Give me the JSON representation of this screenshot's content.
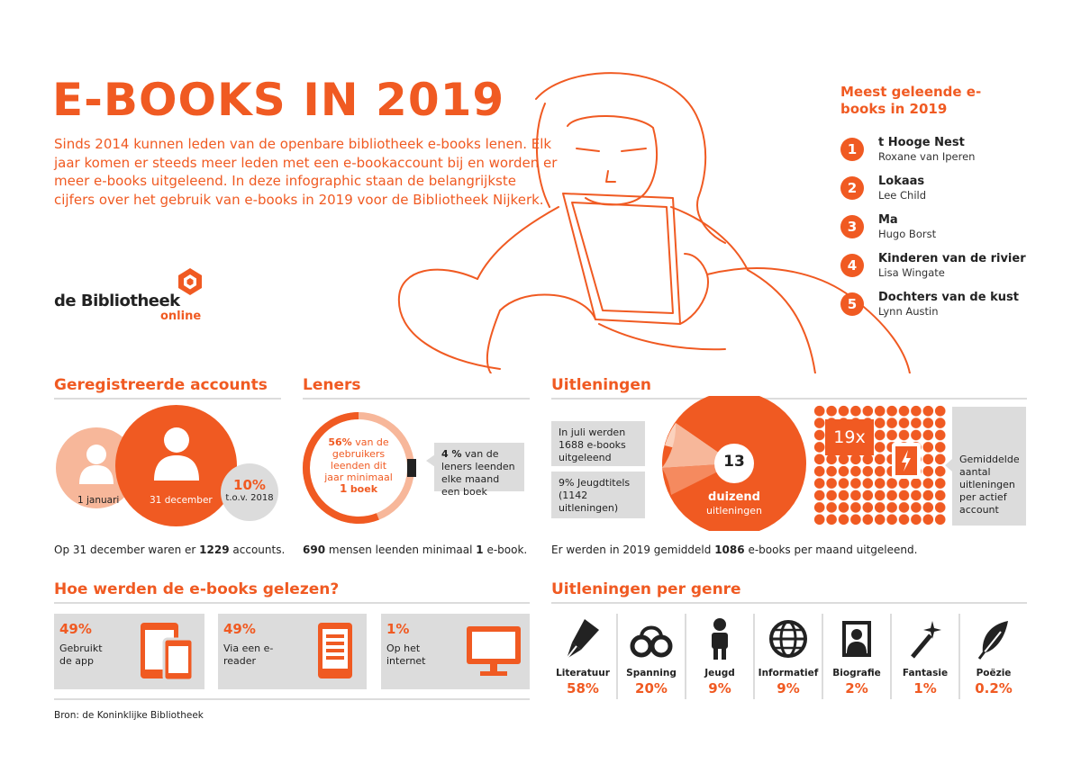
{
  "title": "E-BOOKS IN 2019",
  "intro": "Sinds 2014 kunnen leden van de openbare bibliotheek e-books lenen. Elk jaar komen er steeds meer leden met een e-bookaccount bij en worden er meer e-books uitgeleend. In deze infographic staan de belangrijkste cijfers over het gebruik van e-books in 2019 voor de Bibliotheek Nijkerk.",
  "logo": {
    "name": "de Bibliotheek",
    "sub": "online"
  },
  "top5": {
    "title": "Meest geleende e-books in 2019",
    "items": [
      {
        "num": "1",
        "title": "t Hooge Nest",
        "author": "Roxane van Iperen"
      },
      {
        "num": "2",
        "title": "Lokaas",
        "author": "Lee Child"
      },
      {
        "num": "3",
        "title": "Ma",
        "author": "Hugo Borst"
      },
      {
        "num": "4",
        "title": "Kinderen van de rivier",
        "author": "Lisa Wingate"
      },
      {
        "num": "5",
        "title": "Dochters van de kust",
        "author": "Lynn Austin"
      }
    ]
  },
  "accounts": {
    "title": "Geregistreerde accounts",
    "jan_label": "1 januari",
    "dec_label": "31 december",
    "pct": "10%",
    "pct_sub": "t.o.v. 2018",
    "caption_pre": "Op 31 december waren er",
    "caption_num": "1229",
    "caption_post": "accounts."
  },
  "leners": {
    "title": "Leners",
    "ring_pct": "56%",
    "ring_text": "van de gebruikers leenden dit jaar minimaal",
    "ring_num": "1",
    "ring_unit": "boek",
    "box_pct": "4 %",
    "box_text": "van de leners leenden elke maand een boek",
    "ring_value": 0.56,
    "caption_num": "690",
    "caption_mid": "mensen leenden minimaal",
    "caption_num2": "1",
    "caption_post": "e-book."
  },
  "uitleningen": {
    "title": "Uitleningen",
    "box1": "In juli werden 1688 e-books uitgeleend",
    "box2": "9% Jeugdtitels (1142 uitleningen)",
    "center_num": "13",
    "center_big": "duizend",
    "center_sub": "uitleningen",
    "times": "19x",
    "avg_box": "Gemiddelde aantal uitleningen per actief account",
    "caption_pre": "Er werden in 2019 gemiddeld",
    "caption_num": "1086",
    "caption_post": "e-books per maand uitgeleend."
  },
  "reading": {
    "title": "Hoe werden de e-books gelezen?",
    "cards": [
      {
        "pct": "49%",
        "label": "Gebruikt de app",
        "icon": "tablet-phone-icon",
        "value": 49
      },
      {
        "pct": "49%",
        "label": "Via een e-reader",
        "icon": "ereader-icon",
        "value": 49
      },
      {
        "pct": "1%",
        "label": "Op het internet",
        "icon": "monitor-icon",
        "value": 1
      }
    ]
  },
  "genres": {
    "title": "Uitleningen per genre",
    "items": [
      {
        "label": "Literatuur",
        "pct": "58%",
        "icon": "fountain-pen-icon"
      },
      {
        "label": "Spanning",
        "pct": "20%",
        "icon": "handcuffs-icon"
      },
      {
        "label": "Jeugd",
        "pct": "9%",
        "icon": "child-icon"
      },
      {
        "label": "Informatief",
        "pct": "9%",
        "icon": "globe-icon"
      },
      {
        "label": "Biografie",
        "pct": "2%",
        "icon": "portrait-icon"
      },
      {
        "label": "Fantasie",
        "pct": "1%",
        "icon": "magic-wand-icon"
      },
      {
        "label": "Poëzie",
        "pct": "0.2%",
        "icon": "feather-icon"
      }
    ]
  },
  "source": "Bron: de Koninklijke Bibliotheek",
  "colors": {
    "accent": "#f05a22",
    "light": "#f7b79a",
    "gray": "#dcdcdc"
  }
}
